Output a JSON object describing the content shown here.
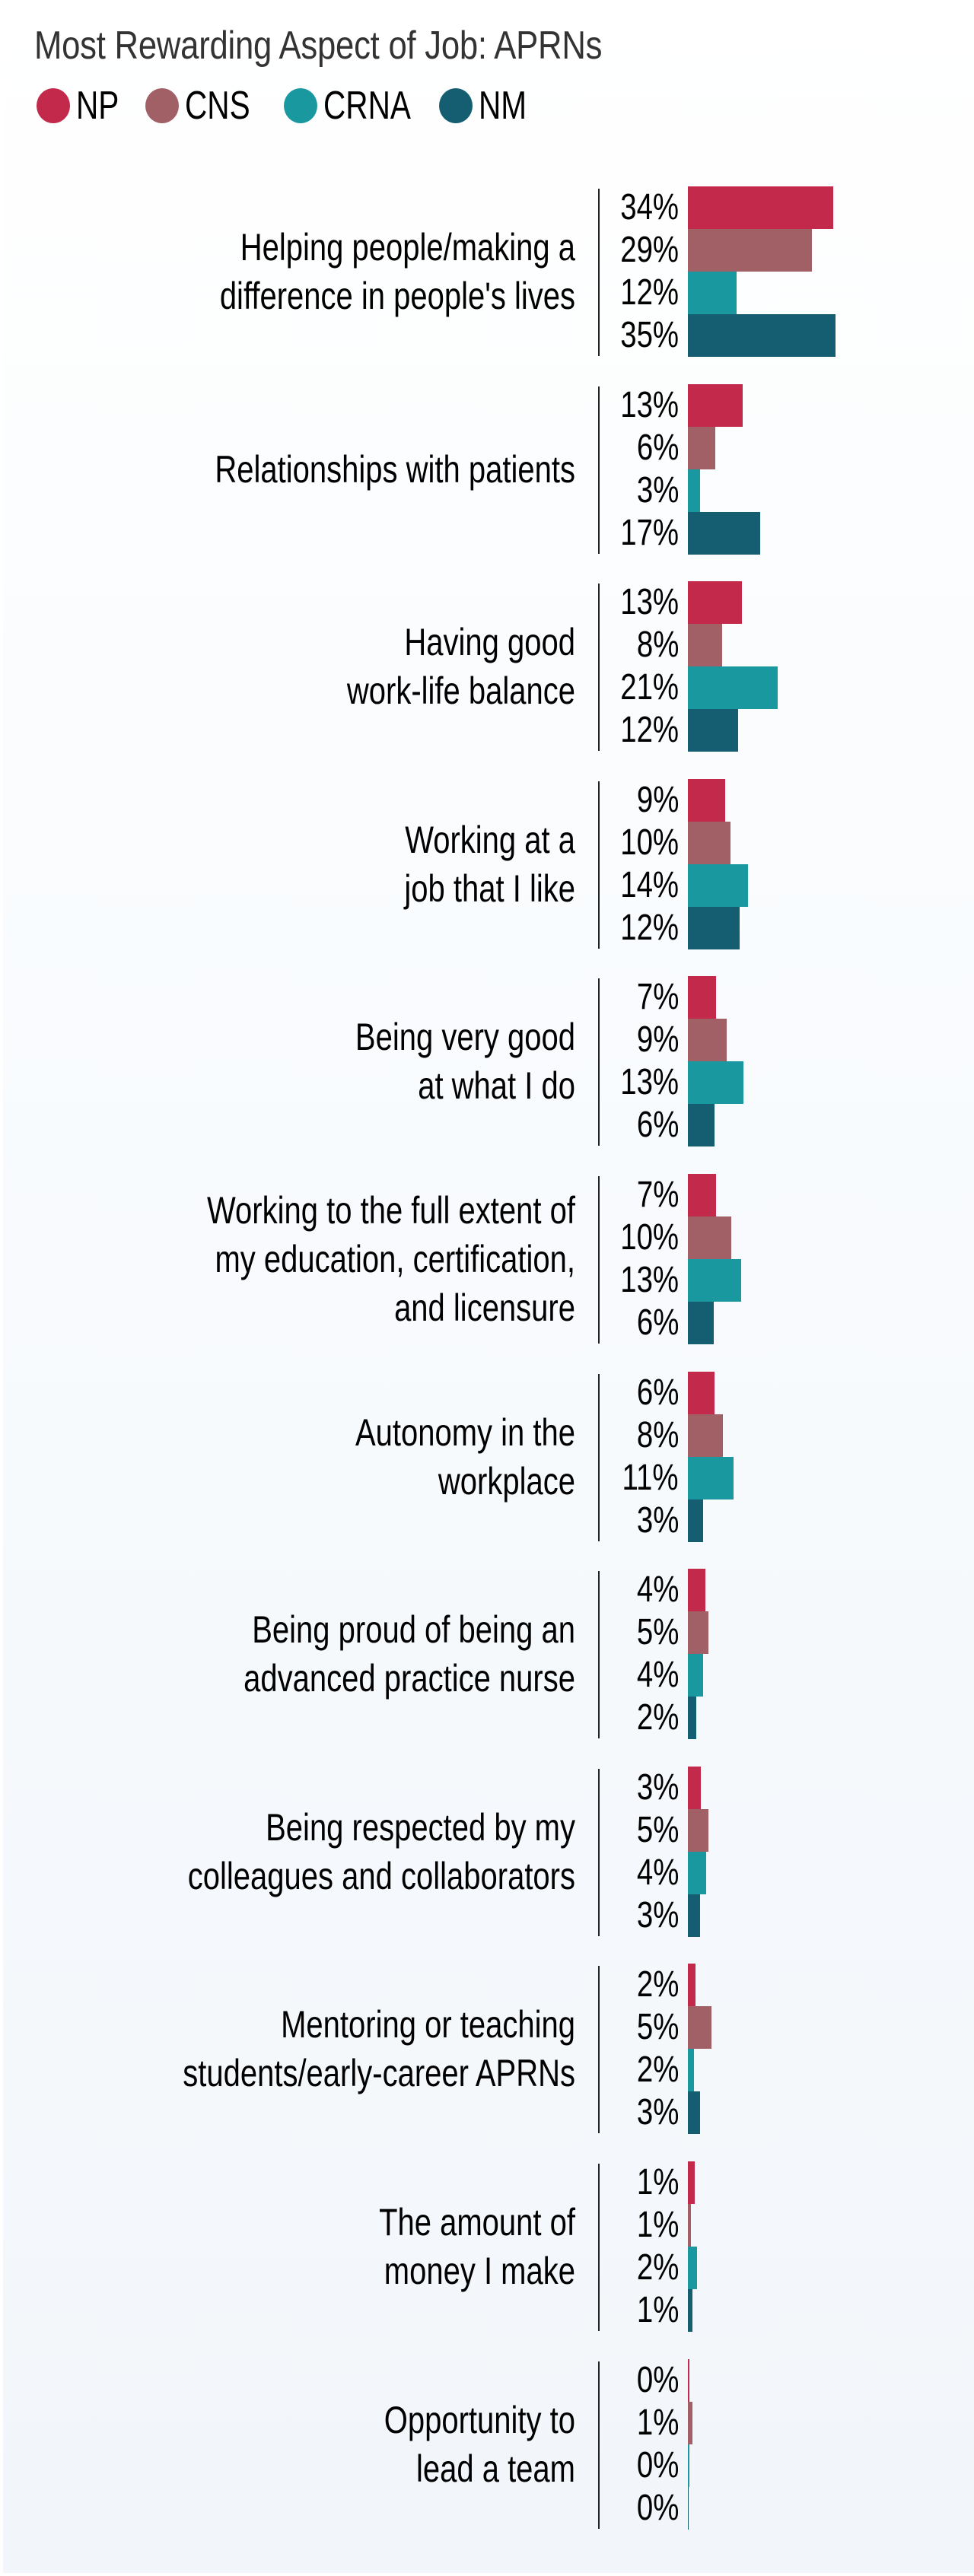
{
  "title": "Most Rewarding Aspect of Job: APRNs",
  "legend": [
    {
      "label": "NP",
      "color": "#c3294b"
    },
    {
      "label": "CNS",
      "color": "#a06065"
    },
    {
      "label": "CRNA",
      "color": "#1a989f"
    },
    {
      "label": "NM",
      "color": "#155e72"
    }
  ],
  "chart_data": {
    "type": "bar",
    "orientation": "horizontal",
    "title": "Most Rewarding Aspect of Job: APRNs",
    "xlabel": "",
    "ylabel": "",
    "grid": false,
    "legend_position": "top-left",
    "categories": [
      "Helping people/making a difference in people's lives",
      "Relationships with patients",
      "Having good work-life balance",
      "Working at a job that I like",
      "Being very good at what I do",
      "Working to the full extent of my education, certification, and licensure",
      "Autonomy in the workplace",
      "Being proud of being an advanced practice nurse",
      "Being respected by my colleagues and collaborators",
      "Mentoring or teaching students/early-career APRNs",
      "The amount of money I make",
      "Opportunity to lead a team"
    ],
    "series": [
      {
        "name": "NP",
        "color": "#c3294b",
        "values": [
          34,
          13,
          13,
          9,
          7,
          7,
          6,
          4,
          3,
          2,
          1,
          0
        ]
      },
      {
        "name": "CNS",
        "color": "#a06065",
        "values": [
          29,
          6,
          8,
          10,
          9,
          10,
          8,
          5,
          5,
          5,
          1,
          1
        ]
      },
      {
        "name": "CRNA",
        "color": "#1a989f",
        "values": [
          12,
          3,
          21,
          14,
          13,
          13,
          11,
          4,
          4,
          2,
          2,
          0
        ]
      },
      {
        "name": "NM",
        "color": "#155e72",
        "values": [
          35,
          17,
          12,
          12,
          6,
          6,
          3,
          2,
          3,
          3,
          1,
          0
        ]
      }
    ],
    "unit": "%"
  },
  "groups": [
    {
      "label": "Helping people/making a\ndifference in people's lives",
      "bars": [
        {
          "text": "34%",
          "w": 34.1
        },
        {
          "text": "29%",
          "w": 29.1
        },
        {
          "text": "12%",
          "w": 11.4
        },
        {
          "text": "35%",
          "w": 34.6
        }
      ]
    },
    {
      "label": "Relationships with patients",
      "bars": [
        {
          "text": "13%",
          "w": 12.9
        },
        {
          "text": "6%",
          "w": 6.4
        },
        {
          "text": "3%",
          "w": 2.9
        },
        {
          "text": "17%",
          "w": 17.0
        }
      ]
    },
    {
      "label": "Having good\nwork-life balance",
      "bars": [
        {
          "text": "13%",
          "w": 12.7
        },
        {
          "text": "8%",
          "w": 8.0
        },
        {
          "text": "21%",
          "w": 21.1
        },
        {
          "text": "12%",
          "w": 11.8
        }
      ]
    },
    {
      "label": "Working at a\njob that I like",
      "bars": [
        {
          "text": "9%",
          "w": 8.8
        },
        {
          "text": "10%",
          "w": 10.0
        },
        {
          "text": "14%",
          "w": 14.1
        },
        {
          "text": "12%",
          "w": 12.1
        }
      ]
    },
    {
      "label": "Being very good\nat what I do",
      "bars": [
        {
          "text": "7%",
          "w": 6.6
        },
        {
          "text": "9%",
          "w": 9.1
        },
        {
          "text": "13%",
          "w": 13.0
        },
        {
          "text": "6%",
          "w": 6.3
        }
      ]
    },
    {
      "label": "Working to the full extent of\nmy education, certification,\nand licensure",
      "bars": [
        {
          "text": "7%",
          "w": 6.6
        },
        {
          "text": "10%",
          "w": 10.2
        },
        {
          "text": "13%",
          "w": 12.5
        },
        {
          "text": "6%",
          "w": 6.1
        }
      ]
    },
    {
      "label": "Autonomy in the\nworkplace",
      "bars": [
        {
          "text": "6%",
          "w": 6.3
        },
        {
          "text": "8%",
          "w": 8.2
        },
        {
          "text": "11%",
          "w": 10.8
        },
        {
          "text": "3%",
          "w": 3.5
        }
      ]
    },
    {
      "label": "Being proud of being an\nadvanced practice nurse",
      "bars": [
        {
          "text": "4%",
          "w": 4.1
        },
        {
          "text": "5%",
          "w": 4.8
        },
        {
          "text": "4%",
          "w": 3.6
        },
        {
          "text": "2%",
          "w": 2.0
        }
      ]
    },
    {
      "label": "Being respected by my\ncolleagues and collaborators",
      "bars": [
        {
          "text": "3%",
          "w": 3.0
        },
        {
          "text": "5%",
          "w": 4.8
        },
        {
          "text": "4%",
          "w": 4.3
        },
        {
          "text": "3%",
          "w": 2.8
        }
      ]
    },
    {
      "label": "Mentoring or teaching\nstudents/early-career APRNs",
      "bars": [
        {
          "text": "2%",
          "w": 1.8
        },
        {
          "text": "5%",
          "w": 5.5
        },
        {
          "text": "2%",
          "w": 1.5
        },
        {
          "text": "3%",
          "w": 2.8
        }
      ]
    },
    {
      "label": "The amount of\nmoney I make",
      "bars": [
        {
          "text": "1%",
          "w": 1.6
        },
        {
          "text": "1%",
          "w": 0.7
        },
        {
          "text": "2%",
          "w": 2.1
        },
        {
          "text": "1%",
          "w": 1.0
        }
      ]
    },
    {
      "label": "Opportunity to\nlead a team",
      "bars": [
        {
          "text": "0%",
          "w": 0.4
        },
        {
          "text": "1%",
          "w": 1.1
        },
        {
          "text": "0%",
          "w": 0.3
        },
        {
          "text": "0%",
          "w": 0.15
        }
      ]
    }
  ]
}
